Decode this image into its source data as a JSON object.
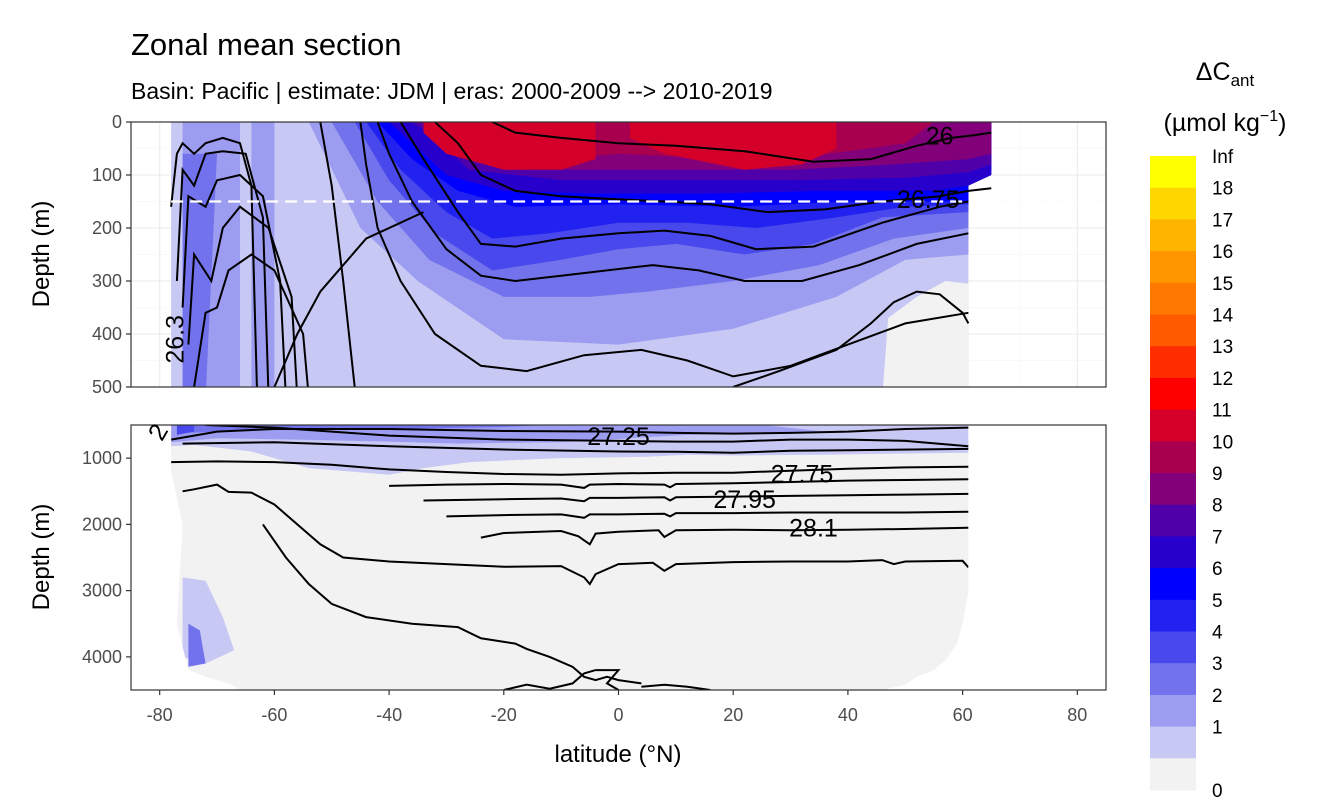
{
  "chart_data": {
    "type": "heatmap",
    "title": "Zonal mean section",
    "subtitle": "Basin: Pacific | estimate: JDM  | eras: 2000-2009 --> 2010-2019",
    "xlabel": "latitude (°N)",
    "ylabel": "Depth (m)",
    "xlim": [
      -85,
      85
    ],
    "x_ticks": [
      "-80",
      "-60",
      "-40",
      "-20",
      "0",
      "20",
      "40",
      "60",
      "80"
    ],
    "x_tick_values": [
      -80,
      -60,
      -40,
      -20,
      0,
      20,
      40,
      60,
      80
    ],
    "panels": [
      {
        "name": "upper",
        "ylim": [
          0,
          500
        ],
        "y_ticks": [
          "0",
          "100",
          "200",
          "300",
          "400",
          "500"
        ],
        "y_tick_values": [
          0,
          100,
          200,
          300,
          400,
          500
        ],
        "dashed_reference_depth": 150
      },
      {
        "name": "lower",
        "ylim": [
          500,
          4500
        ],
        "y_ticks": [
          "1000",
          "2000",
          "3000",
          "4000"
        ],
        "y_tick_values": [
          1000,
          2000,
          3000,
          4000
        ]
      }
    ],
    "legend": {
      "title_main": "ΔC",
      "title_sub": "ant",
      "title_unit": "(µmol kg",
      "title_unit_exp": "−1",
      "title_unit_close": ")",
      "placement": "right",
      "breaks": [
        "Inf",
        "18",
        "17",
        "16",
        "15",
        "14",
        "13",
        "12",
        "11",
        "10",
        "9",
        "8",
        "7",
        "6",
        "5",
        "4",
        "3",
        "2",
        "1",
        "0"
      ],
      "colors": [
        "#ffff00",
        "#ffd700",
        "#ffb400",
        "#ff9600",
        "#ff7800",
        "#ff5a00",
        "#ff2d00",
        "#ff0000",
        "#d4002a",
        "#a8004f",
        "#82007a",
        "#5000a8",
        "#2800cc",
        "#0000ff",
        "#2222f0",
        "#4848ec",
        "#7272ec",
        "#9c9cf0",
        "#c8c8f4",
        "#f2f2f2"
      ]
    },
    "contour_labels": [
      {
        "label": "26",
        "x": 56,
        "y": 30,
        "panel": 0,
        "rotate": 0
      },
      {
        "label": "26.75",
        "x": 54,
        "y": 150,
        "panel": 0,
        "rotate": 0
      },
      {
        "label": "26.3",
        "x": -77,
        "y": 410,
        "panel": 0,
        "rotate": -90
      },
      {
        "label": "27.25",
        "x": 0,
        "y": 700,
        "panel": 1,
        "rotate": 0
      },
      {
        "label": "27.75",
        "x": 32,
        "y": 1270,
        "panel": 1,
        "rotate": 0
      },
      {
        "label": "27.95",
        "x": 22,
        "y": 1650,
        "panel": 1,
        "rotate": 0
      },
      {
        "label": "28.1",
        "x": 34,
        "y": 2080,
        "panel": 1,
        "rotate": 0
      },
      {
        "label": "2",
        "x": -80,
        "y": 620,
        "panel": 1,
        "rotate": -60
      }
    ],
    "grid": true
  }
}
